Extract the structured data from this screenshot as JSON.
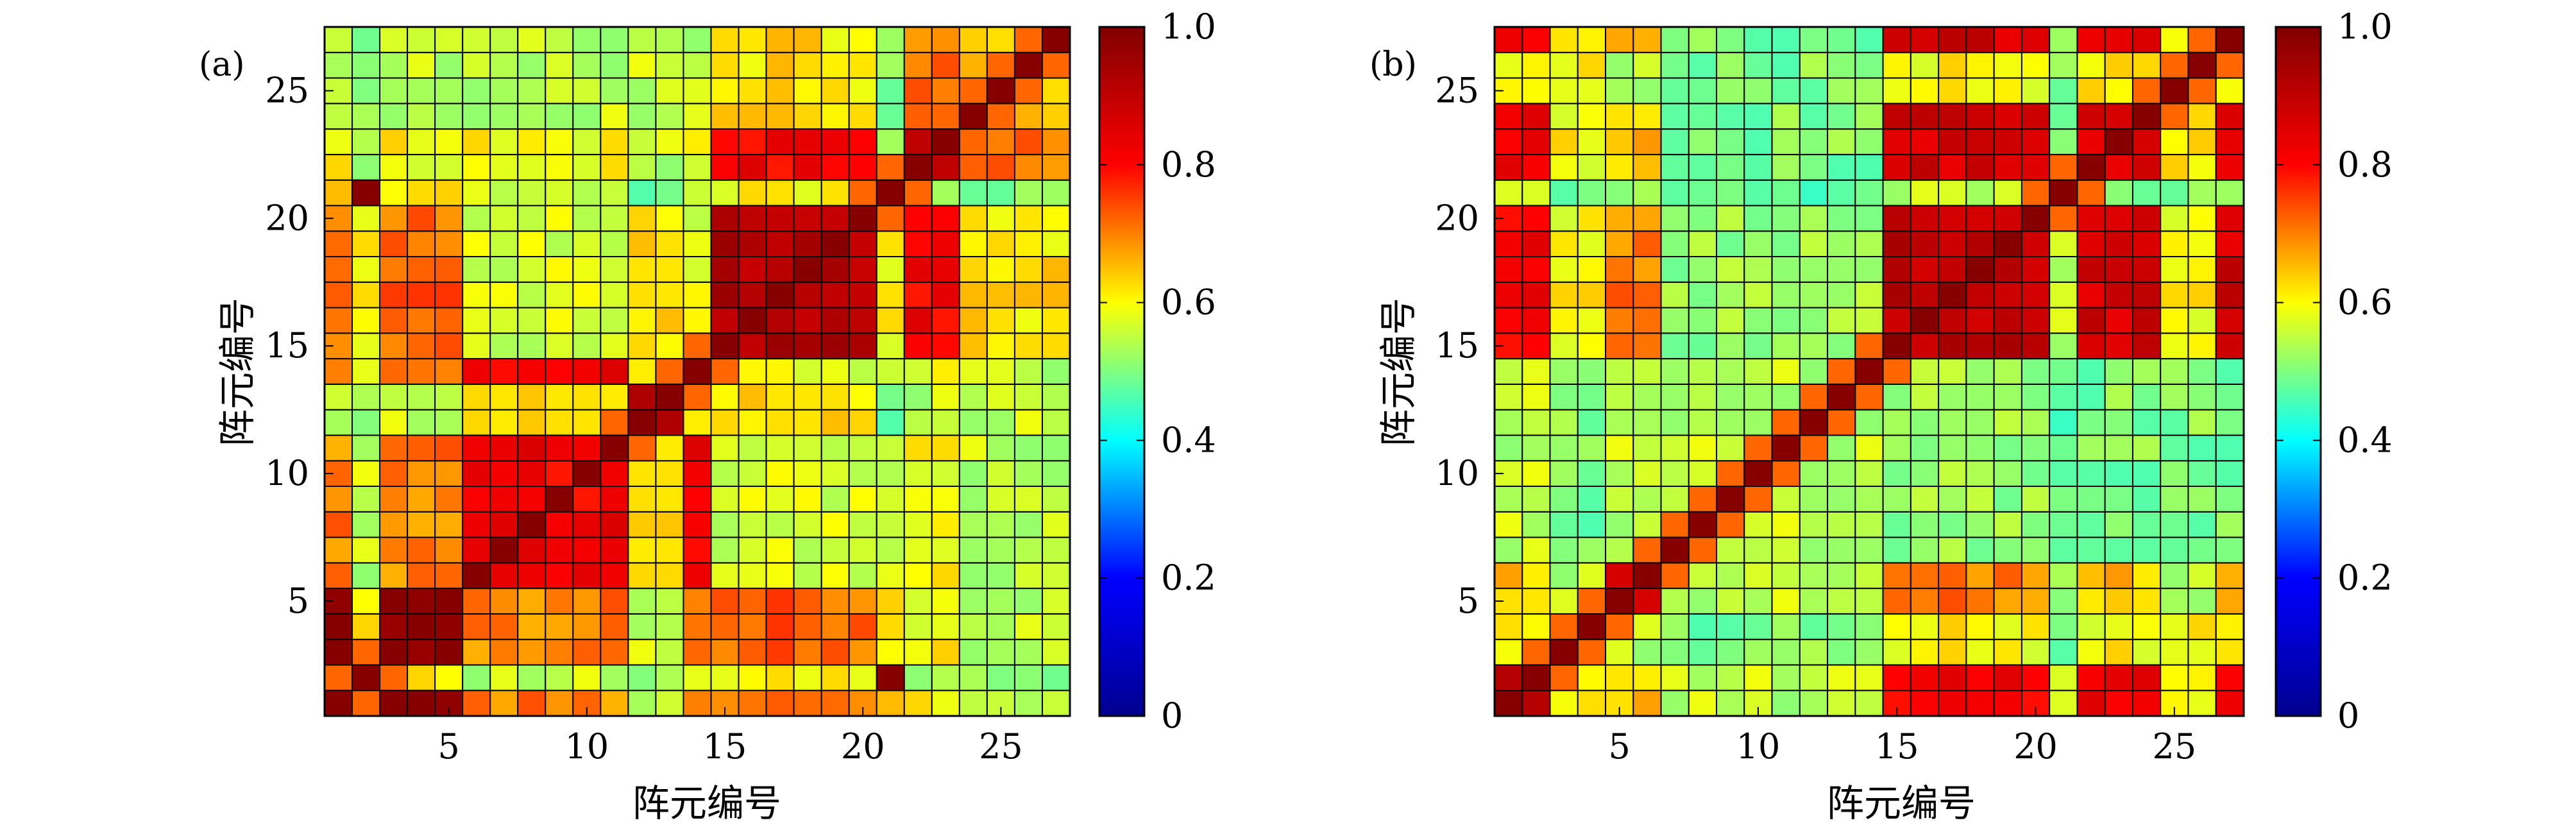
{
  "chart_data": [
    {
      "type": "heatmap",
      "panel_label": "(a)",
      "xlabel": "阵元编号",
      "ylabel": "阵元编号",
      "xlim": [
        0.5,
        27.5
      ],
      "ylim": [
        0.5,
        27.5
      ],
      "x_ticks": [
        5,
        10,
        15,
        20,
        25
      ],
      "y_ticks": [
        5,
        10,
        15,
        20,
        25
      ],
      "colorbar": {
        "min": 0,
        "max": 1,
        "ticks": [
          0,
          0.2,
          0.4,
          0.6,
          0.8,
          1.0
        ],
        "tick_labels": [
          "0",
          "0.2",
          "0.4",
          "0.6",
          "0.8",
          "1.0"
        ]
      },
      "colormap": [
        "#00008f",
        "#0000ff",
        "#00ffff",
        "#ffff00",
        "#ff0000",
        "#800000"
      ],
      "grid": true,
      "size": 27,
      "value_estimate_note": "",
      "groups": [
        0,
        1,
        0,
        0,
        0,
        2,
        2,
        2,
        2,
        2,
        2,
        3,
        3,
        2,
        4,
        4,
        4,
        4,
        4,
        4,
        1,
        5,
        5,
        6,
        6,
        6,
        6
      ],
      "group_matrix": [
        [
          1.0,
          0.63,
          0.7,
          0.55,
          0.72,
          0.6,
          0.55
        ],
        [
          0.63,
          1.0,
          0.55,
          0.5,
          0.6,
          0.52,
          0.5
        ],
        [
          0.7,
          0.55,
          0.82,
          0.65,
          0.57,
          0.6,
          0.55
        ],
        [
          0.55,
          0.5,
          0.65,
          0.95,
          0.62,
          0.55,
          0.55
        ],
        [
          0.72,
          0.6,
          0.57,
          0.62,
          0.92,
          0.82,
          0.62
        ],
        [
          0.6,
          0.52,
          0.6,
          0.55,
          0.82,
          0.92,
          0.7
        ],
        [
          0.55,
          0.5,
          0.55,
          0.55,
          0.62,
          0.7,
          0.63
        ]
      ]
    },
    {
      "type": "heatmap",
      "panel_label": "(b)",
      "xlabel": "阵元编号",
      "ylabel": "阵元编号",
      "xlim": [
        0.5,
        27.5
      ],
      "ylim": [
        0.5,
        27.5
      ],
      "x_ticks": [
        5,
        10,
        15,
        20,
        25
      ],
      "y_ticks": [
        5,
        10,
        15,
        20,
        25
      ],
      "colorbar": {
        "min": 0,
        "max": 1,
        "ticks": [
          0,
          0.2,
          0.4,
          0.6,
          0.8,
          1.0
        ],
        "tick_labels": [
          "0",
          "0.2",
          "0.4",
          "0.6",
          "0.8",
          "1.0"
        ]
      },
      "colormap": [
        "#00008f",
        "#0000ff",
        "#00ffff",
        "#ffff00",
        "#ff0000",
        "#800000"
      ],
      "grid": true,
      "size": 27,
      "groups": [
        0,
        0,
        1,
        1,
        2,
        2,
        3,
        3,
        3,
        3,
        3,
        3,
        3,
        3,
        4,
        4,
        4,
        4,
        4,
        4,
        5,
        6,
        6,
        6,
        1,
        1,
        6
      ],
      "group_matrix": [
        [
          0.95,
          0.6,
          0.65,
          0.55,
          0.82,
          0.55,
          0.82
        ],
        [
          0.6,
          0.6,
          0.55,
          0.5,
          0.6,
          0.5,
          0.6
        ],
        [
          0.65,
          0.55,
          0.9,
          0.55,
          0.7,
          0.5,
          0.65
        ],
        [
          0.55,
          0.5,
          0.55,
          0.55,
          0.52,
          0.48,
          0.5
        ],
        [
          0.82,
          0.6,
          0.7,
          0.52,
          0.9,
          0.55,
          0.87
        ],
        [
          0.55,
          0.5,
          0.5,
          0.48,
          0.55,
          1.0,
          0.5
        ],
        [
          0.82,
          0.6,
          0.65,
          0.5,
          0.87,
          0.5,
          0.85
        ]
      ]
    }
  ]
}
